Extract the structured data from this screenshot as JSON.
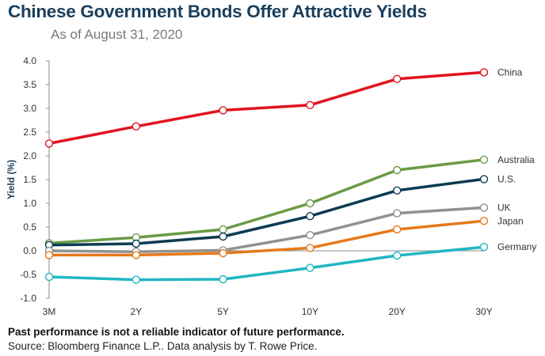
{
  "header": {
    "title": "Chinese Government Bonds Offer Attractive Yields",
    "subtitle": "As of August 31, 2020"
  },
  "footer": {
    "disclaimer": "Past performance is not a reliable indicator of future performance.",
    "source": "Source: Bloomberg Finance L.P.. Data analysis by T. Rowe Price."
  },
  "chart_data": {
    "type": "line",
    "title": "Chinese Government Bonds Offer Attractive Yields",
    "subtitle": "As of August 31, 2020",
    "xlabel": "",
    "ylabel": "Yield (%)",
    "categories": [
      "3M",
      "2Y",
      "5Y",
      "10Y",
      "20Y",
      "30Y"
    ],
    "ylim": [
      -1.0,
      4.0
    ],
    "yticks": [
      "4.0",
      "3.5",
      "3.0",
      "2.5",
      "2.0",
      "1.5",
      "1.0",
      "0.5",
      "0.0",
      "-0.5",
      "-1.0"
    ],
    "grid": false,
    "legend": "right, labels at line ends",
    "series": [
      {
        "name": "China",
        "color": "#e0131f",
        "values": [
          2.26,
          2.62,
          2.96,
          3.07,
          3.62,
          3.76
        ]
      },
      {
        "name": "Australia",
        "color": "#6a9b45",
        "values": [
          0.16,
          0.28,
          0.45,
          1.0,
          1.7,
          1.92
        ]
      },
      {
        "name": "U.S.",
        "color": "#0c3b52",
        "values": [
          0.12,
          0.15,
          0.3,
          0.73,
          1.27,
          1.51
        ]
      },
      {
        "name": "UK",
        "color": "#919191",
        "values": [
          0.0,
          -0.02,
          0.01,
          0.33,
          0.79,
          0.91
        ]
      },
      {
        "name": "Japan",
        "color": "#e57a1c",
        "values": [
          -0.09,
          -0.09,
          -0.05,
          0.06,
          0.45,
          0.63
        ]
      },
      {
        "name": "Germany",
        "color": "#21b6c3",
        "values": [
          -0.55,
          -0.61,
          -0.6,
          -0.36,
          -0.1,
          0.08
        ]
      }
    ]
  }
}
